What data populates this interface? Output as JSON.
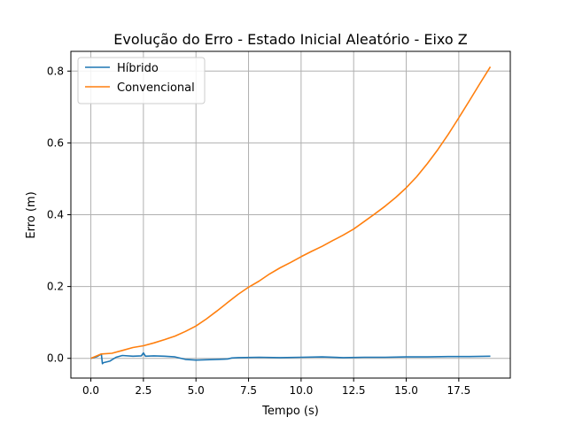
{
  "chart_data": {
    "type": "line",
    "title": "Evolução do Erro - Estado Inicial Aleatório - Eixo Z",
    "xlabel": "Tempo (s)",
    "ylabel": "Erro (m)",
    "xlim": [
      -0.95,
      19.95
    ],
    "ylim": [
      -0.055,
      0.855
    ],
    "xticks": [
      0.0,
      2.5,
      5.0,
      7.5,
      10.0,
      12.5,
      15.0,
      17.5
    ],
    "xtick_labels": [
      "0.0",
      "2.5",
      "5.0",
      "7.5",
      "10.0",
      "12.5",
      "15.0",
      "17.5"
    ],
    "yticks": [
      0.0,
      0.2,
      0.4,
      0.6,
      0.8
    ],
    "ytick_labels": [
      "0.0",
      "0.2",
      "0.4",
      "0.6",
      "0.8"
    ],
    "grid": true,
    "legend_position": "top-left",
    "series": [
      {
        "name": "Híbrido",
        "color": "#1f77b4",
        "x": [
          0.0,
          0.3,
          0.45,
          0.5,
          0.55,
          0.6,
          0.9,
          1.2,
          1.5,
          2.0,
          2.4,
          2.5,
          2.6,
          3.0,
          3.5,
          4.0,
          4.5,
          5.0,
          5.5,
          6.0,
          6.5,
          6.7,
          7.0,
          8.0,
          9.0,
          10.0,
          11.0,
          12.0,
          13.0,
          14.0,
          15.0,
          16.0,
          17.0,
          18.0,
          19.0
        ],
        "y": [
          0.0,
          0.005,
          0.01,
          0.012,
          -0.015,
          -0.012,
          -0.008,
          0.003,
          0.008,
          0.006,
          0.007,
          0.015,
          0.006,
          0.007,
          0.006,
          0.004,
          -0.003,
          -0.005,
          -0.004,
          -0.003,
          -0.002,
          0.001,
          0.002,
          0.003,
          0.002,
          0.003,
          0.004,
          0.002,
          0.003,
          0.003,
          0.004,
          0.004,
          0.005,
          0.005,
          0.006
        ]
      },
      {
        "name": "Convencional",
        "color": "#ff7f0e",
        "x": [
          0.0,
          0.5,
          1.0,
          1.5,
          2.0,
          2.5,
          3.0,
          3.5,
          4.0,
          4.5,
          5.0,
          5.5,
          6.0,
          6.5,
          7.0,
          7.5,
          8.0,
          8.5,
          9.0,
          9.5,
          10.0,
          10.5,
          11.0,
          11.5,
          12.0,
          12.5,
          13.0,
          13.5,
          14.0,
          14.5,
          15.0,
          15.5,
          16.0,
          16.5,
          17.0,
          17.5,
          18.0,
          18.5,
          19.0
        ],
        "y": [
          0.0,
          0.012,
          0.014,
          0.022,
          0.03,
          0.035,
          0.043,
          0.052,
          0.062,
          0.075,
          0.09,
          0.11,
          0.132,
          0.155,
          0.178,
          0.198,
          0.215,
          0.235,
          0.252,
          0.267,
          0.283,
          0.298,
          0.312,
          0.328,
          0.343,
          0.36,
          0.381,
          0.402,
          0.424,
          0.448,
          0.475,
          0.506,
          0.542,
          0.581,
          0.624,
          0.67,
          0.717,
          0.765,
          0.812
        ]
      }
    ]
  }
}
